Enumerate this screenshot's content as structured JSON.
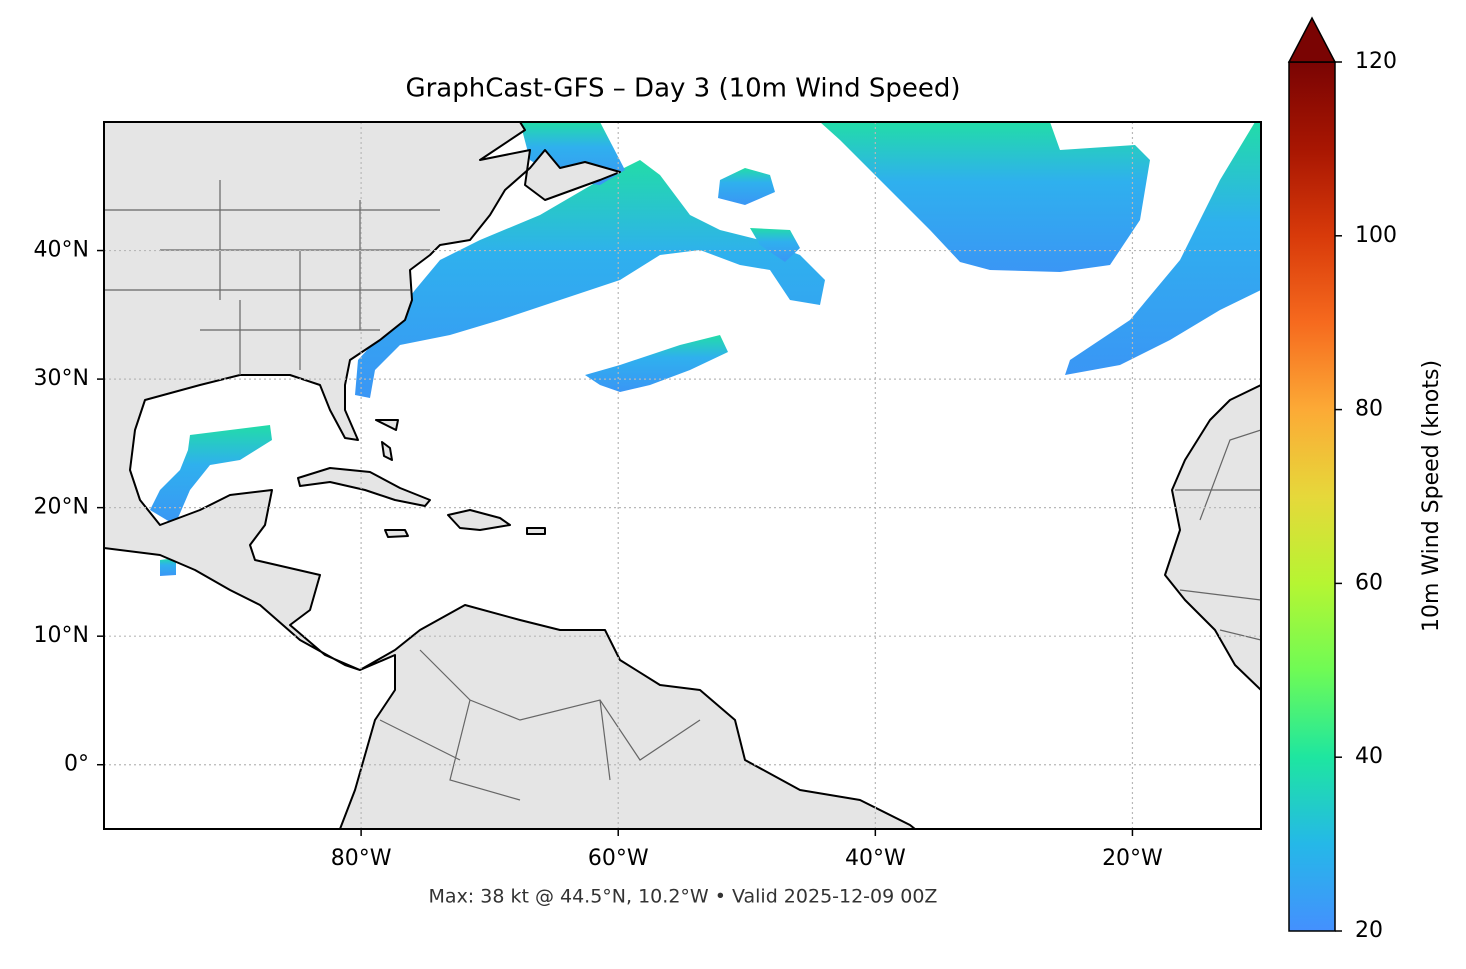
{
  "chart_data": {
    "type": "map",
    "title": "GraphCast-GFS – Day 3 (10m Wind Speed)",
    "annotation": "Max: 38 kt @ 44.5°N, 10.2°W • Valid 2025-12-09 00Z",
    "xlim": [
      -100,
      -10
    ],
    "ylim": [
      -5,
      50
    ],
    "xticks": [
      {
        "value": -80,
        "label": "80°W"
      },
      {
        "value": -60,
        "label": "60°W"
      },
      {
        "value": -40,
        "label": "40°W"
      },
      {
        "value": -20,
        "label": "20°W"
      }
    ],
    "yticks": [
      {
        "value": 0,
        "label": "0°"
      },
      {
        "value": 10,
        "label": "10°N"
      },
      {
        "value": 20,
        "label": "20°N"
      },
      {
        "value": 30,
        "label": "30°N"
      },
      {
        "value": 40,
        "label": "40°N"
      }
    ],
    "grid": true,
    "colorbar": {
      "label": "10m Wind Speed (knots)",
      "lim": [
        20,
        120
      ],
      "ticks": [
        20,
        40,
        60,
        80,
        100,
        120
      ],
      "extend": "max"
    }
  }
}
